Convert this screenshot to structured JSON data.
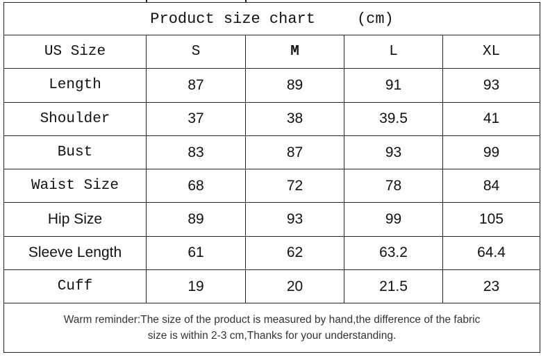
{
  "title": "Product size chart",
  "unit": "(cm)",
  "header": [
    "US Size",
    "S",
    "M",
    "L",
    "XL"
  ],
  "rows": [
    {
      "label": "Length",
      "values": [
        "87",
        "89",
        "91",
        "93"
      ],
      "mono": true
    },
    {
      "label": "Shoulder",
      "values": [
        "37",
        "38",
        "39.5",
        "41"
      ],
      "mono": true
    },
    {
      "label": "Bust",
      "values": [
        "83",
        "87",
        "93",
        "99"
      ],
      "mono": true
    },
    {
      "label": "Waist Size",
      "values": [
        "68",
        "72",
        "78",
        "84"
      ],
      "mono": true
    },
    {
      "label": "Hip Size",
      "values": [
        "89",
        "93",
        "99",
        "105"
      ],
      "mono": false
    },
    {
      "label": "Sleeve Length",
      "values": [
        "61",
        "62",
        "63.2",
        "64.4"
      ],
      "mono": false
    },
    {
      "label": "Cuff",
      "values": [
        "19",
        "20",
        "21.5",
        "23"
      ],
      "mono": true
    }
  ],
  "note_line1": "Warm reminder:The size of the product is measured by hand,the difference of the fabric",
  "note_line2": "size is within 2-3 cm,Thanks for your understanding."
}
